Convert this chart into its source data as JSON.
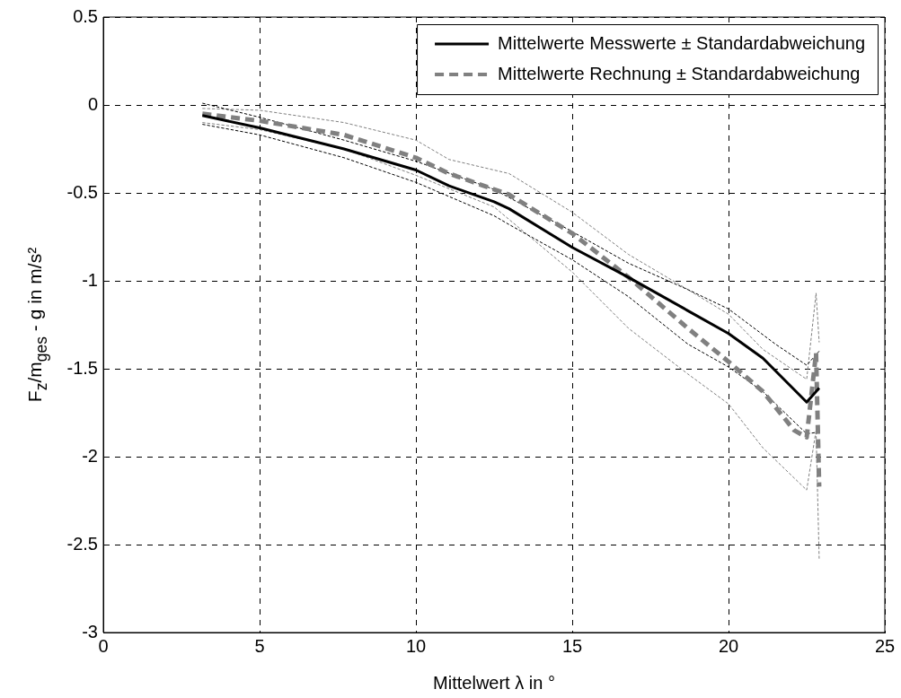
{
  "chart_data": {
    "type": "line",
    "xlabel": "Mittelwert λ in °",
    "ylabel": "F$_{z}$/m$_{ges}$ - g in m/s²",
    "xlim": [
      0,
      25
    ],
    "xticks": [
      0,
      5,
      10,
      15,
      20,
      25
    ],
    "ylim": [
      -3,
      0.5
    ],
    "yticks": [
      -3,
      -2.5,
      -2,
      -1.5,
      -1,
      -0.5,
      0,
      0.5
    ],
    "grid": true,
    "legend": "top right",
    "marker": "none",
    "series": [
      {
        "name": "Mittelwerte Messwerte ± Standardabweichung",
        "color": "#000000",
        "line_style": "solid",
        "x": [
          3.17,
          5,
          7.7,
          10,
          11.06,
          12.5,
          12.98,
          15,
          16.8,
          18.7,
          20,
          21.1,
          22.5,
          22.9
        ],
        "values": [
          -0.06,
          -0.13,
          -0.25,
          -0.37,
          -0.46,
          -0.55,
          -0.59,
          -0.81,
          -0.98,
          -1.17,
          -1.3,
          -1.44,
          -1.69,
          -1.61
        ]
      },
      {
        "name": "Mittelwerte Rechnung ± Standardabweichung",
        "color": "#808080",
        "line_style": "dashed",
        "x": [
          3.17,
          5,
          7.7,
          10,
          11.06,
          12.5,
          12.98,
          15,
          16.8,
          18.7,
          20,
          21.1,
          22.1,
          22.5,
          22.8,
          22.9
        ],
        "values": [
          -0.05,
          -0.09,
          -0.17,
          -0.3,
          -0.39,
          -0.48,
          -0.51,
          -0.73,
          -0.98,
          -1.27,
          -1.46,
          -1.63,
          -1.85,
          -1.89,
          -1.41,
          -2.17
        ]
      },
      {
        "color": "#000000",
        "line_style": "dashed",
        "x": [
          3.17,
          5,
          7.7,
          10,
          12.5,
          15,
          16.8,
          18.7,
          20,
          21.5,
          22.5,
          22.9
        ],
        "values": [
          0.01,
          -0.07,
          -0.2,
          -0.32,
          -0.48,
          -0.72,
          -0.9,
          -1.05,
          -1.16,
          -1.36,
          -1.48,
          -1.4
        ]
      },
      {
        "color": "#000000",
        "line_style": "dashed",
        "x": [
          3.17,
          5,
          7.7,
          10,
          12.5,
          12.98,
          15,
          16.8,
          18.7,
          20,
          21.1,
          22.5,
          22.9
        ],
        "values": [
          -0.11,
          -0.17,
          -0.3,
          -0.44,
          -0.63,
          -0.68,
          -0.88,
          -1.09,
          -1.36,
          -1.49,
          -1.63,
          -1.87,
          -1.86
        ]
      },
      {
        "color": "#808080",
        "line_style": "dashed",
        "x": [
          3.17,
          5,
          7.7,
          10,
          11.06,
          12.98,
          15,
          16.8,
          18.7,
          20,
          21.1,
          22.5,
          22.8,
          22.9
        ],
        "values": [
          -0.02,
          -0.03,
          -0.1,
          -0.2,
          -0.31,
          -0.39,
          -0.61,
          -0.85,
          -1.05,
          -1.19,
          -1.39,
          -1.56,
          -1.07,
          -1.35
        ]
      },
      {
        "color": "#808080",
        "line_style": "dashed",
        "x": [
          3.17,
          5,
          7.7,
          10,
          12.5,
          15,
          16.8,
          18.7,
          20,
          21.1,
          22.5,
          22.8,
          22.9
        ],
        "values": [
          -0.1,
          -0.14,
          -0.25,
          -0.4,
          -0.58,
          -0.95,
          -1.27,
          -1.53,
          -1.7,
          -1.95,
          -2.19,
          -1.85,
          -2.58
        ]
      }
    ]
  }
}
